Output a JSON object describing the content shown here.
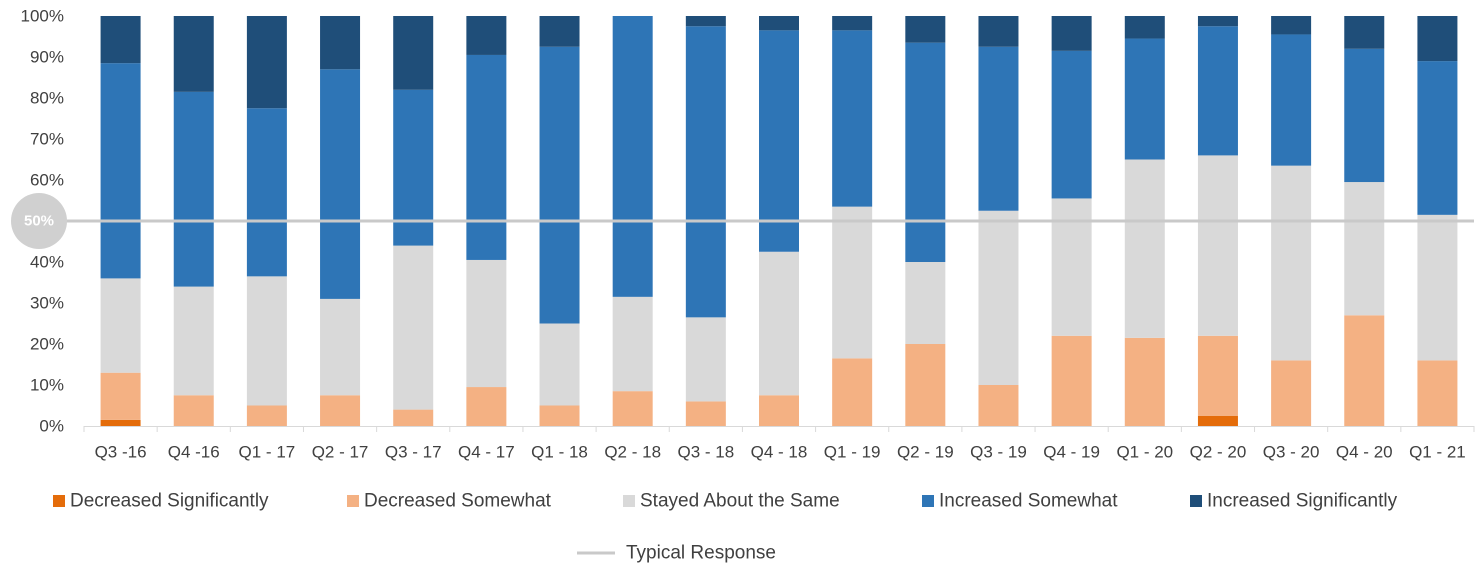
{
  "chart_data": {
    "type": "bar",
    "stacked": true,
    "normalized": true,
    "categories": [
      "Q3 -16",
      "Q4 -16",
      "Q1 - 17",
      "Q2 - 17",
      "Q3 - 17",
      "Q4 - 17",
      "Q1 - 18",
      "Q2 - 18",
      "Q3 - 18",
      "Q4 - 18",
      "Q1 - 19",
      "Q2 - 19",
      "Q3 - 19",
      "Q4 - 19",
      "Q1 - 20",
      "Q2 - 20",
      "Q3 - 20",
      "Q4 - 20",
      "Q1 - 21"
    ],
    "series": [
      {
        "name": "Decreased Significantly",
        "color": "#e46c0a",
        "values": [
          1.5,
          0,
          0,
          0,
          0,
          0,
          0,
          0,
          0,
          0,
          0,
          0,
          0,
          0,
          0,
          2.5,
          0,
          0,
          0
        ]
      },
      {
        "name": "Decreased Somewhat",
        "color": "#f4b183",
        "values": [
          11.5,
          7.5,
          5,
          7.5,
          4,
          9.5,
          5,
          8.5,
          6,
          7.5,
          16.5,
          20,
          10,
          22,
          21.5,
          19.5,
          16,
          27,
          16
        ]
      },
      {
        "name": "Stayed About the Same",
        "color": "#d9d9d9",
        "values": [
          23,
          26.5,
          31.5,
          23.5,
          40,
          31,
          20,
          23,
          20.5,
          35,
          37,
          20,
          42.5,
          33.5,
          43.5,
          44,
          47.5,
          32.5,
          35.5
        ]
      },
      {
        "name": "Increased Somewhat",
        "color": "#2e75b6",
        "values": [
          52.5,
          47.5,
          41,
          56,
          38,
          50,
          67.5,
          68.5,
          71,
          54,
          43,
          53.5,
          40,
          36,
          29.5,
          31.5,
          32,
          32.5,
          37.5
        ]
      },
      {
        "name": "Increased Significantly",
        "color": "#1f4e79",
        "values": [
          11.5,
          18.5,
          22.5,
          13,
          18,
          9.5,
          7.5,
          0,
          2.5,
          3.5,
          3.5,
          6.5,
          7.5,
          8.5,
          5.5,
          2.5,
          4.5,
          8,
          11
        ]
      }
    ],
    "yticks": [
      "0%",
      "10%",
      "20%",
      "30%",
      "40%",
      "50%",
      "60%",
      "70%",
      "80%",
      "90%",
      "100%"
    ],
    "ylim": [
      0,
      100
    ],
    "reference_line": {
      "name": "Typical Response",
      "value": 50,
      "color": "#c9c9c9"
    },
    "highlight_label": "50%",
    "legend_position": "bottom",
    "grid": false
  }
}
